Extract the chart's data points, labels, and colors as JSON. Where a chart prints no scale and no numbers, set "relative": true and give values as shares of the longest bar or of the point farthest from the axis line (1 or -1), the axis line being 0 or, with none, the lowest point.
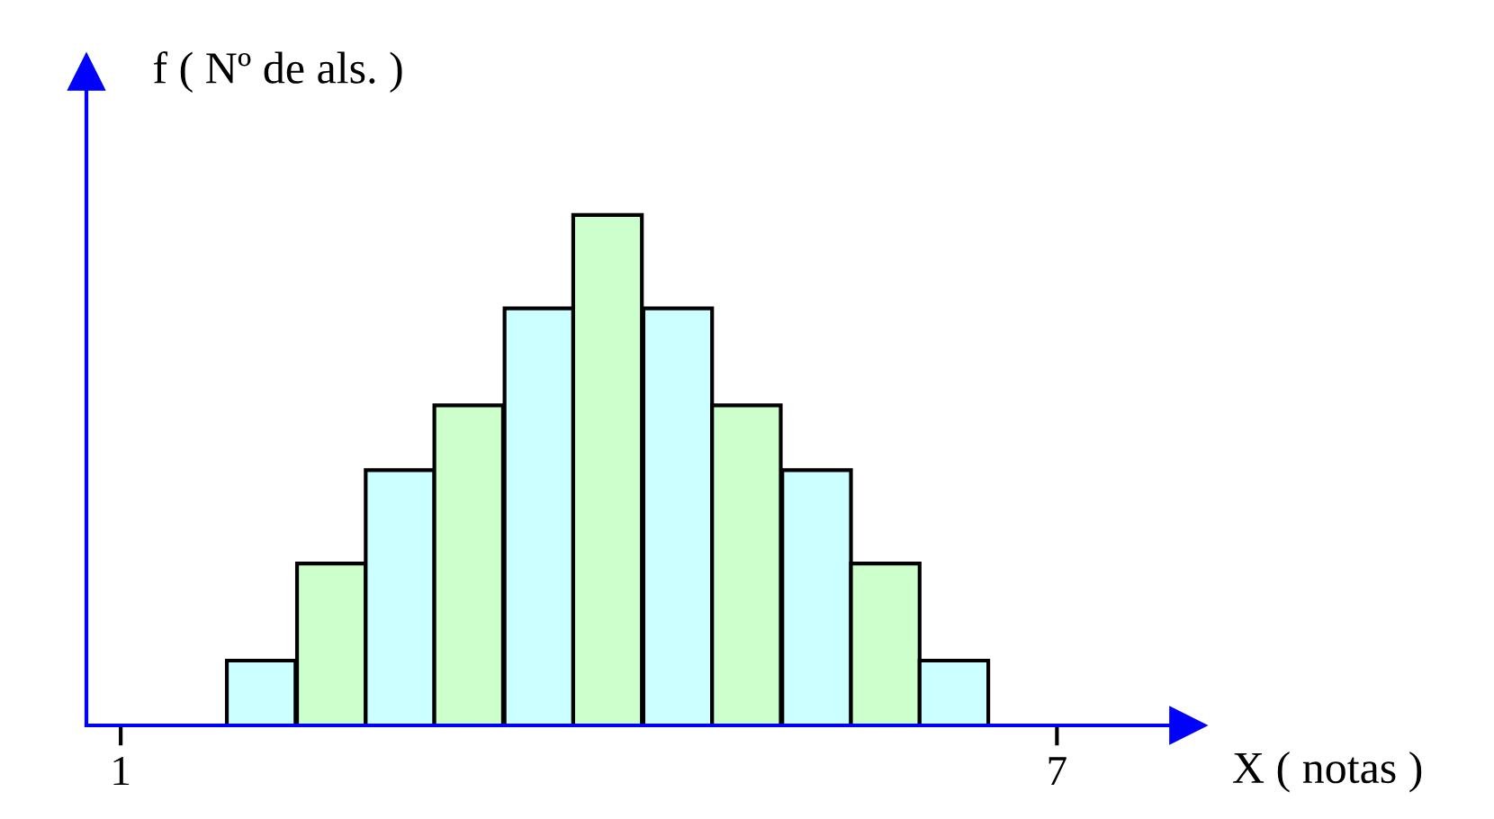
{
  "chart_data": {
    "type": "bar",
    "relative": true,
    "xlabel": "X ( notas )",
    "ylabel": "f ( Nº de als. )",
    "x": [
      1.9,
      2.35,
      2.79,
      3.23,
      3.68,
      4.12,
      4.57,
      5.01,
      5.46,
      5.9,
      6.34
    ],
    "values": [
      0.127,
      0.317,
      0.5,
      0.627,
      0.817,
      1,
      0.817,
      0.627,
      0.5,
      0.317,
      0.127
    ],
    "colors": [
      "#ccffff",
      "#ccffcc",
      "#ccffff",
      "#ccffcc",
      "#ccffff",
      "#ccffcc",
      "#ccffff",
      "#ccffcc",
      "#ccffff",
      "#ccffcc",
      "#ccffff"
    ],
    "xlim": [
      0.78,
      7.84
    ],
    "xticks": [
      1,
      7
    ],
    "grid": false,
    "legend": false
  }
}
